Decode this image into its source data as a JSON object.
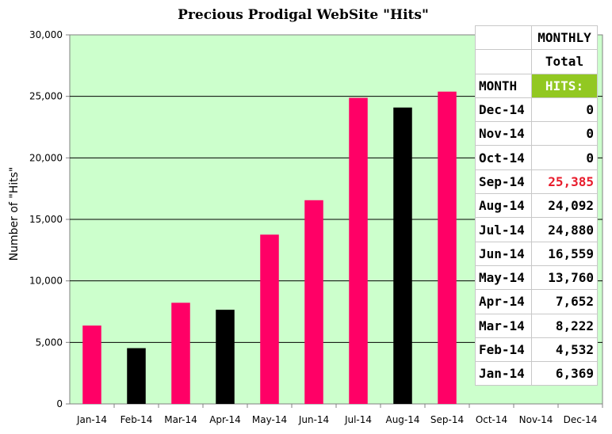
{
  "chart_data": {
    "type": "bar",
    "title": "Precious Prodigal WebSite \"Hits\"",
    "ylabel": "Number of  \"Hits\"",
    "xlabel": "",
    "ylim": [
      0,
      30000
    ],
    "yticks": [
      "0",
      "5,000",
      "10,000",
      "15,000",
      "20,000",
      "25,000",
      "30,000"
    ],
    "categories": [
      "Jan-14",
      "Feb-14",
      "Mar-14",
      "Apr-14",
      "May-14",
      "Jun-14",
      "Jul-14",
      "Aug-14",
      "Sep-14",
      "Oct-14",
      "Nov-14",
      "Dec-14"
    ],
    "values": [
      6369,
      4532,
      8222,
      7652,
      13760,
      16559,
      24880,
      24092,
      25385,
      0,
      0,
      0
    ],
    "bar_colors": [
      "#ff0066",
      "#000000",
      "#ff0066",
      "#000000",
      "#ff0066",
      "#ff0066",
      "#ff0066",
      "#000000",
      "#ff0066",
      "#ff0066",
      "#ff0066",
      "#ff0066"
    ],
    "plot_background": "#ccffcc",
    "grid": true
  },
  "table": {
    "header_row1": "MONTHLY",
    "header_row2": "Total",
    "month_header": "MONTH",
    "hits_header": "HITS:",
    "rows": [
      {
        "month": "Dec-14",
        "value": "0"
      },
      {
        "month": "Nov-14",
        "value": "0"
      },
      {
        "month": "Oct-14",
        "value": "0"
      },
      {
        "month": "Sep-14",
        "value": "25,385"
      },
      {
        "month": "Aug-14",
        "value": "24,092"
      },
      {
        "month": "Jul-14",
        "value": "24,880"
      },
      {
        "month": "Jun-14",
        "value": "16,559"
      },
      {
        "month": "May-14",
        "value": "13,760"
      },
      {
        "month": "Apr-14",
        "value": "7,652"
      },
      {
        "month": "Mar-14",
        "value": "8,222"
      },
      {
        "month": "Feb-14",
        "value": "4,532"
      },
      {
        "month": "Jan-14",
        "value": "6,369"
      }
    ],
    "highlight_color": "#e81c2c",
    "hits_header_bg": "#92c822"
  }
}
